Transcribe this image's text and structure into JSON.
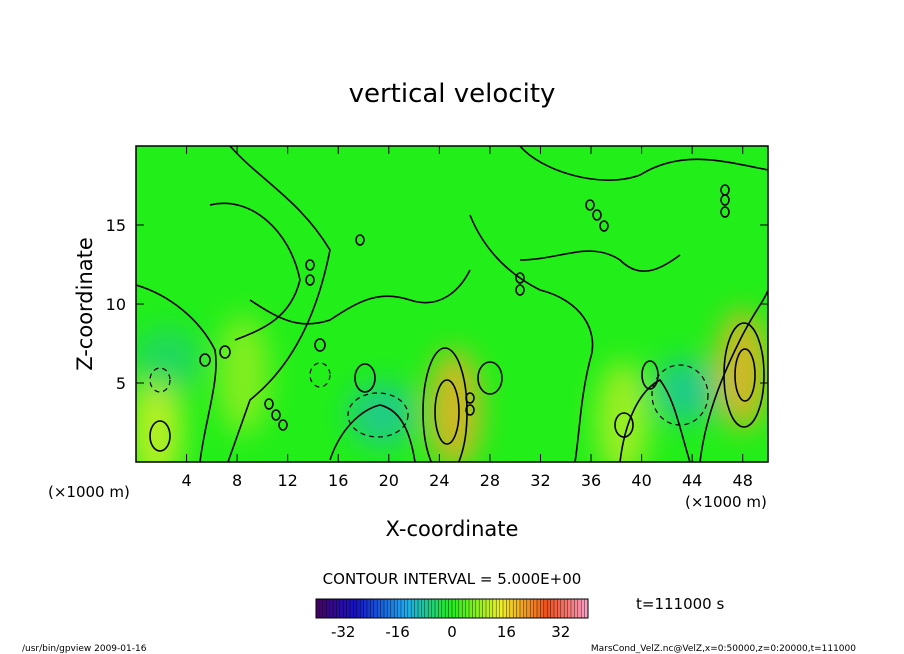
{
  "chart_data": {
    "type": "heatmap",
    "title": "vertical velocity",
    "xlabel": "X-coordinate",
    "ylabel": "Z-coordinate",
    "x_unit_left": "(×1000 m)",
    "x_unit_right": "(×1000 m)",
    "xlim": [
      0,
      50
    ],
    "ylim": [
      0,
      20
    ],
    "x_ticks": [
      4,
      8,
      12,
      16,
      20,
      24,
      28,
      32,
      36,
      40,
      44,
      48
    ],
    "y_ticks": [
      5,
      10,
      15
    ],
    "contour_interval_text": "CONTOUR INTERVAL = 5.000E+00",
    "time_text": "t=111000 s",
    "colorbar": {
      "min": -40,
      "max": 40,
      "ticks": [
        -32,
        -16,
        0,
        16,
        32
      ]
    },
    "features": [
      {
        "kind": "updraft",
        "x": 25.2,
        "z": 3.3,
        "value": 20
      },
      {
        "kind": "updraft",
        "x": 48.0,
        "z": 5.8,
        "value": 20
      },
      {
        "kind": "updraft",
        "x": 1.6,
        "z": 2.1,
        "value": 12
      },
      {
        "kind": "updraft",
        "x": 38.5,
        "z": 2.6,
        "value": 10
      },
      {
        "kind": "updraft",
        "x": 8.5,
        "z": 5.5,
        "value": 8
      },
      {
        "kind": "downdraft",
        "x": 19.5,
        "z": 3.0,
        "value": -8
      },
      {
        "kind": "downdraft",
        "x": 43.5,
        "z": 4.5,
        "value": -8
      },
      {
        "kind": "downdraft",
        "x": 2.5,
        "z": 6.5,
        "value": -5
      }
    ]
  },
  "footer": {
    "left": "/usr/bin/gpview   2009-01-16",
    "right": "MarsCond_VelZ.nc@VelZ,x=0:50000,z=0:20000,t=111000"
  }
}
